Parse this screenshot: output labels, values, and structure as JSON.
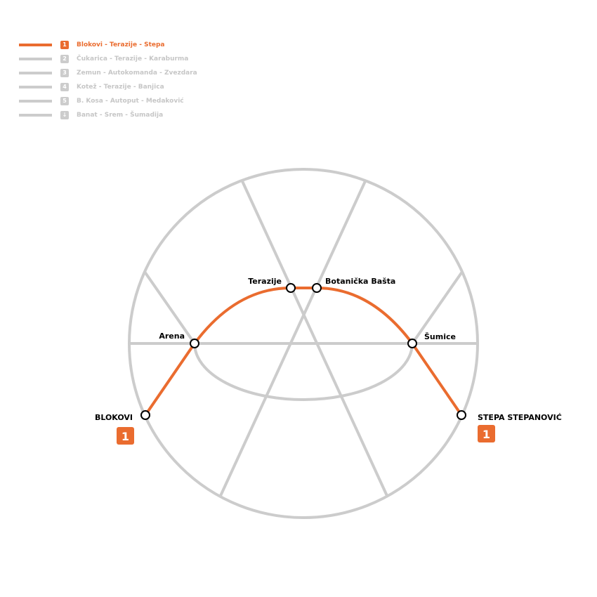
{
  "colors": {
    "active_line": "#ea6c2f",
    "inactive_line": "#cccccc",
    "station_fill": "#ffffff",
    "station_stroke": "#000000"
  },
  "legend": [
    {
      "number": "1",
      "label": "Blokovi - Terazije - Stepa",
      "active": true
    },
    {
      "number": "2",
      "label": "Čukarica - Terazije - Karaburma",
      "active": false
    },
    {
      "number": "3",
      "label": "Zemun - Autokomanda - Zvezdara",
      "active": false
    },
    {
      "number": "4",
      "label": "Kotež - Terazije - Banjica",
      "active": false
    },
    {
      "number": "5",
      "label": "B. Kosa - Autoput - Medaković",
      "active": false
    },
    {
      "number": "↓",
      "label": "Banat - Srem - Šumadija",
      "active": false
    }
  ],
  "map": {
    "stations": {
      "terazije": "Terazije",
      "botanicka": "Botanička Bašta",
      "arena": "Arena",
      "sumice": "Šumice",
      "blokovi": "BLOKOVI",
      "stepa": "STEPA STEPANOVIĆ"
    },
    "terminal_badges": {
      "blokovi": "1",
      "stepa": "1"
    }
  }
}
